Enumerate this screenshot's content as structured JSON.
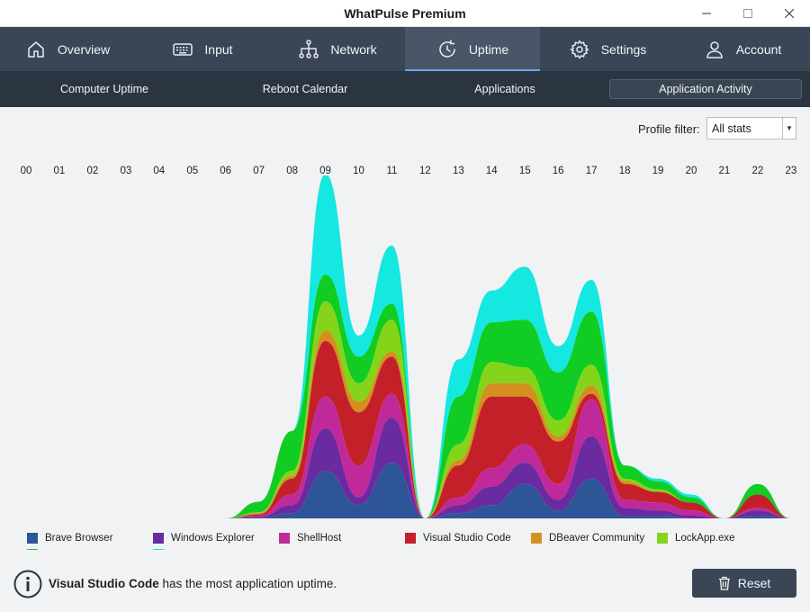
{
  "window": {
    "title": "WhatPulse Premium"
  },
  "nav": {
    "tabs": [
      {
        "label": "Overview",
        "icon": "home-icon"
      },
      {
        "label": "Input",
        "icon": "keyboard-icon"
      },
      {
        "label": "Network",
        "icon": "network-icon"
      },
      {
        "label": "Uptime",
        "icon": "clock-icon",
        "active": true
      },
      {
        "label": "Settings",
        "icon": "gear-icon"
      },
      {
        "label": "Account",
        "icon": "user-icon"
      }
    ]
  },
  "subnav": {
    "tabs": [
      {
        "label": "Computer Uptime"
      },
      {
        "label": "Reboot Calendar"
      },
      {
        "label": "Applications"
      },
      {
        "label": "Application Activity",
        "active": true
      }
    ]
  },
  "filter": {
    "label": "Profile filter:",
    "value": "All stats"
  },
  "chart_data": {
    "type": "area",
    "stacked": true,
    "x": [
      "00",
      "01",
      "02",
      "03",
      "04",
      "05",
      "06",
      "07",
      "08",
      "09",
      "10",
      "11",
      "12",
      "13",
      "14",
      "15",
      "16",
      "17",
      "18",
      "19",
      "20",
      "21",
      "22",
      "23"
    ],
    "series": [
      {
        "name": "Brave Browser",
        "color": "#2e5597",
        "values": [
          0,
          0,
          0,
          0,
          0,
          0,
          0,
          0.2,
          2,
          18,
          5,
          21,
          0,
          2,
          5,
          13,
          3,
          15,
          1,
          1,
          0,
          0,
          1,
          0
        ]
      },
      {
        "name": "Windows Explorer",
        "color": "#6a2aa0",
        "values": [
          0,
          0,
          0,
          0,
          0,
          0,
          0,
          0.3,
          3,
          16,
          3,
          17,
          0,
          3,
          7,
          8,
          4,
          16,
          3,
          2,
          1,
          0,
          2,
          0
        ]
      },
      {
        "name": "ShellHost",
        "color": "#c0299a",
        "values": [
          0,
          0,
          0,
          0,
          0,
          0,
          0,
          0.5,
          4,
          12,
          12,
          9,
          0,
          3,
          7,
          7,
          6,
          14,
          3,
          3,
          2,
          0,
          1,
          0
        ]
      },
      {
        "name": "Visual Studio Code",
        "color": "#c4202a",
        "values": [
          0,
          0,
          0,
          0,
          0,
          0,
          0,
          0.5,
          6,
          21,
          20,
          14,
          0,
          12,
          27,
          18,
          16,
          2,
          6,
          4,
          3,
          0,
          5,
          0
        ]
      },
      {
        "name": "DBeaver Community",
        "color": "#d4901e",
        "values": [
          0,
          0,
          0,
          0,
          0,
          0,
          0,
          0.5,
          1,
          4,
          4,
          2,
          0,
          2,
          5,
          5,
          2,
          3,
          1,
          0,
          0,
          0,
          0,
          0
        ]
      },
      {
        "name": "LockApp.exe",
        "color": "#84d41a",
        "values": [
          0,
          0,
          0,
          0,
          0,
          0,
          0,
          0.3,
          2,
          11,
          7,
          12,
          0,
          6,
          8,
          6,
          6,
          8,
          1,
          1,
          0,
          0,
          0,
          0
        ]
      },
      {
        "name": "",
        "color": "#11cc22",
        "values": [
          0,
          0,
          0,
          0,
          0,
          0,
          0,
          4,
          15,
          10,
          10,
          6,
          0,
          18,
          15,
          18,
          18,
          20,
          5,
          3,
          2,
          0,
          4,
          0
        ]
      },
      {
        "name": "",
        "color": "#14e8e0",
        "values": [
          0,
          0,
          0,
          0,
          0,
          0,
          0,
          0,
          0,
          38,
          8,
          22,
          0,
          14,
          12,
          20,
          10,
          12,
          0,
          1,
          1,
          0,
          0,
          0
        ]
      }
    ],
    "ylim": [
      0,
      125
    ]
  },
  "legend": {
    "items": [
      {
        "label": "Brave Browser",
        "color": "#2e5597",
        "under": "#11cc22"
      },
      {
        "label": "Windows Explorer",
        "color": "#6a2aa0",
        "under": "#14e8e0"
      },
      {
        "label": "ShellHost",
        "color": "#c0299a"
      },
      {
        "label": "Visual Studio Code",
        "color": "#c4202a"
      },
      {
        "label": "DBeaver Community",
        "color": "#d4901e"
      },
      {
        "label": "LockApp.exe",
        "color": "#84d41a"
      }
    ]
  },
  "info": {
    "app": "Visual Studio Code",
    "message": "has the most application uptime."
  },
  "reset": {
    "label": "Reset"
  }
}
